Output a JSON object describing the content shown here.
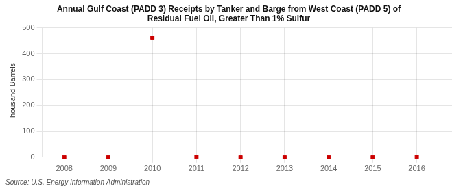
{
  "chart_data": {
    "type": "scatter",
    "title": "Annual Gulf Coast (PADD 3) Receipts by Tanker and Barge from West Coast (PADD 5) of\nResidual Fuel Oil, Greater Than 1% Sulfur",
    "ylabel": "Thousand Barrels",
    "annotations": [
      "Source: U.S. Energy Information Administration"
    ],
    "x": [
      2008,
      2009,
      2010,
      2011,
      2012,
      2013,
      2014,
      2015,
      2016
    ],
    "values": [
      0,
      0,
      462,
      1,
      0,
      0,
      0,
      0,
      1
    ],
    "color": "#cc0000",
    "marker": "square",
    "xlim": [
      2007.5,
      2016.8
    ],
    "ylim": [
      0,
      500
    ],
    "xticks": [
      2008,
      2009,
      2010,
      2011,
      2012,
      2013,
      2014,
      2015,
      2016
    ],
    "yticks": [
      0,
      100,
      200,
      300,
      400,
      500
    ],
    "grid": true
  }
}
